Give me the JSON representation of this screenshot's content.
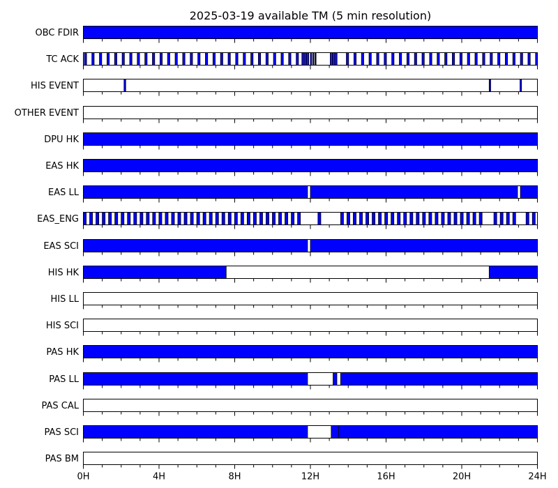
{
  "chart_data": {
    "type": "timeline",
    "title": "2025-03-19 available TM (5 min resolution)",
    "x_unit": "hours",
    "xlim": [
      0,
      24
    ],
    "x_ticks": [
      {
        "value": 0,
        "label": "0H"
      },
      {
        "value": 4,
        "label": "4H"
      },
      {
        "value": 8,
        "label": "8H"
      },
      {
        "value": 12,
        "label": "12H"
      },
      {
        "value": 16,
        "label": "16H"
      },
      {
        "value": 20,
        "label": "20H"
      },
      {
        "value": 24,
        "label": "24H"
      }
    ],
    "minor_tick_step_hours": 1,
    "fill_color": "#0000ff",
    "empty_color": "#ffffff",
    "border_color": "#000000",
    "rows": [
      {
        "label": "OBC FDIR",
        "available": [
          [
            0,
            24
          ]
        ]
      },
      {
        "label": "TC ACK",
        "pattern": [
          {
            "from": 0.05,
            "to": 11.55,
            "period": 0.4,
            "width": 0.12
          },
          {
            "from": 11.55,
            "to": 11.9,
            "period": 0.1,
            "width": 0.06
          },
          {
            "from": 12.0,
            "to": 12.25,
            "period": 0.12,
            "width": 0.06
          },
          {
            "from": 13.05,
            "to": 13.4,
            "period": 0.1,
            "width": 0.06
          },
          {
            "from": 13.9,
            "to": 24.0,
            "period": 0.4,
            "width": 0.12
          }
        ]
      },
      {
        "label": "HIS EVENT",
        "available": [
          [
            2.15,
            2.24
          ],
          [
            21.45,
            21.53
          ],
          [
            23.08,
            23.16
          ]
        ]
      },
      {
        "label": "OTHER EVENT",
        "available": []
      },
      {
        "label": "DPU HK",
        "available": [
          [
            0,
            24
          ]
        ]
      },
      {
        "label": "EAS HK",
        "available": [
          [
            0,
            24
          ]
        ]
      },
      {
        "label": "EAS LL",
        "available": [
          [
            0,
            11.85
          ],
          [
            12.0,
            22.95
          ],
          [
            23.1,
            24
          ]
        ]
      },
      {
        "label": "EAS_ENG",
        "pattern": [
          {
            "from": 0.0,
            "to": 11.5,
            "period": 0.333,
            "width": 0.15
          },
          {
            "from": 12.4,
            "to": 12.55,
            "period": 1.0,
            "width": 0.15
          },
          {
            "from": 13.6,
            "to": 21.1,
            "period": 0.333,
            "width": 0.15
          },
          {
            "from": 21.7,
            "to": 22.8,
            "period": 0.333,
            "width": 0.15
          },
          {
            "from": 23.4,
            "to": 24.0,
            "period": 0.333,
            "width": 0.15
          }
        ]
      },
      {
        "label": "EAS SCI",
        "available": [
          [
            0,
            11.85
          ],
          [
            12.0,
            24
          ]
        ]
      },
      {
        "label": "HIS HK",
        "available": [
          [
            0,
            7.55
          ],
          [
            21.45,
            24
          ]
        ]
      },
      {
        "label": "HIS LL",
        "available": []
      },
      {
        "label": "HIS SCI",
        "available": []
      },
      {
        "label": "PAS HK",
        "available": [
          [
            0,
            24
          ]
        ]
      },
      {
        "label": "PAS LL",
        "available": [
          [
            0,
            11.85
          ],
          [
            13.2,
            13.4
          ],
          [
            13.6,
            24
          ]
        ]
      },
      {
        "label": "PAS CAL",
        "available": []
      },
      {
        "label": "PAS SCI",
        "available": [
          [
            0,
            11.85
          ],
          [
            13.1,
            13.5
          ],
          [
            13.5,
            24
          ]
        ]
      },
      {
        "label": "PAS BM",
        "available": []
      }
    ]
  }
}
